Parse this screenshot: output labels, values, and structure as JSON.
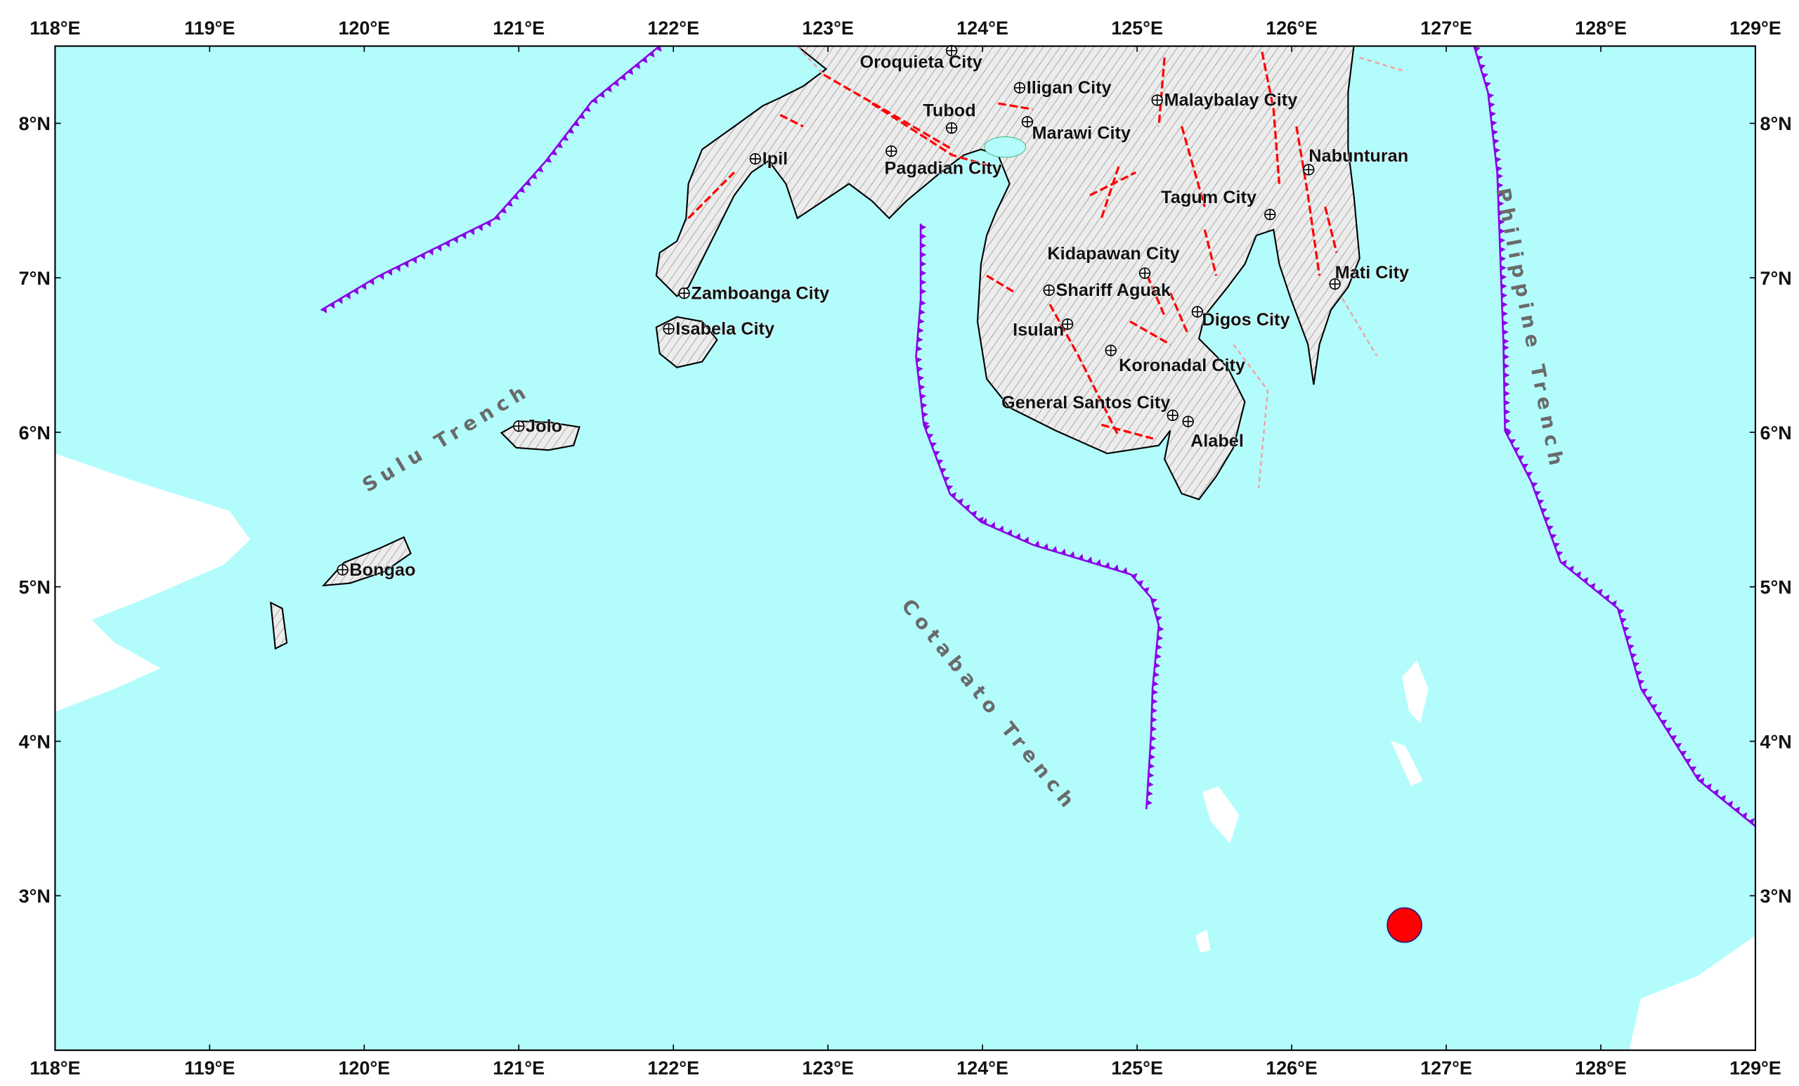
{
  "map": {
    "extent": {
      "lon": [
        118,
        129
      ],
      "lat": [
        2,
        8.5
      ]
    },
    "lon_ticks": [
      "118°E",
      "119°E",
      "120°E",
      "121°E",
      "122°E",
      "123°E",
      "124°E",
      "125°E",
      "126°E",
      "127°E",
      "128°E",
      "129°E"
    ],
    "lat_ticks": [
      "3°N",
      "4°N",
      "5°N",
      "6°N",
      "7°N",
      "8°N"
    ],
    "colors": {
      "sea": "#b3fcfc",
      "land": "#e6e6e6",
      "fault": "#ff0000",
      "trench": "#8a00e6",
      "epicenter": "#ff0000",
      "trench_label": "#6a6a6a"
    },
    "cities": [
      {
        "name": "Oroquieta City",
        "lon": 123.8,
        "lat": 8.47
      },
      {
        "name": "Iligan City",
        "lon": 124.24,
        "lat": 8.23
      },
      {
        "name": "Tubod",
        "lon": 123.8,
        "lat": 7.97
      },
      {
        "name": "Marawi City",
        "lon": 124.29,
        "lat": 8.01
      },
      {
        "name": "Malaybalay City",
        "lon": 125.13,
        "lat": 8.15
      },
      {
        "name": "Pagadian City",
        "lon": 123.41,
        "lat": 7.82
      },
      {
        "name": "Ipil",
        "lon": 122.53,
        "lat": 7.77
      },
      {
        "name": "Nabunturan",
        "lon": 126.11,
        "lat": 7.7
      },
      {
        "name": "Tagum City",
        "lon": 125.86,
        "lat": 7.41
      },
      {
        "name": "Kidapawan City",
        "lon": 125.05,
        "lat": 7.03
      },
      {
        "name": "Zamboanga City",
        "lon": 122.07,
        "lat": 6.9
      },
      {
        "name": "Shariff Aguak",
        "lon": 124.43,
        "lat": 6.92
      },
      {
        "name": "Mati City",
        "lon": 126.28,
        "lat": 6.96
      },
      {
        "name": "Digos City",
        "lon": 125.39,
        "lat": 6.78
      },
      {
        "name": "Isulan",
        "lon": 124.55,
        "lat": 6.7
      },
      {
        "name": "Isabela City",
        "lon": 121.97,
        "lat": 6.67
      },
      {
        "name": "Koronadal City",
        "lon": 124.83,
        "lat": 6.53
      },
      {
        "name": "General Santos City",
        "lon": 125.23,
        "lat": 6.11
      },
      {
        "name": "Alabel",
        "lon": 125.33,
        "lat": 6.07
      },
      {
        "name": "Jolo",
        "lon": 121.0,
        "lat": 6.04
      },
      {
        "name": "Bongao",
        "lon": 119.86,
        "lat": 5.11
      }
    ],
    "trenches": [
      {
        "name": "Sulu Trench"
      },
      {
        "name": "Cotabato Trench"
      },
      {
        "name": "Philippine Trench"
      }
    ],
    "epicenter": {
      "lon": 126.73,
      "lat": 2.81
    }
  }
}
